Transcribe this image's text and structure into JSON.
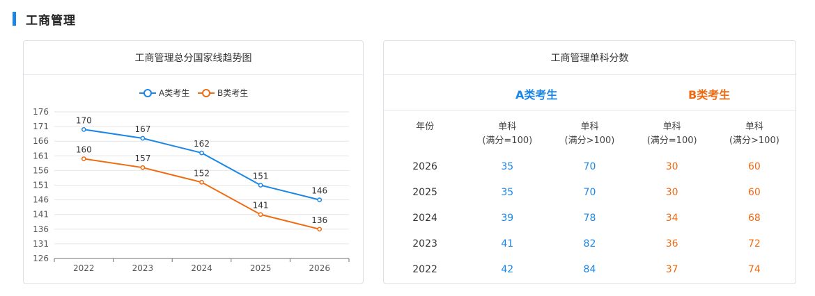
{
  "section": {
    "title": "工商管理"
  },
  "line_card": {
    "title": "工商管理总分国家线趋势图"
  },
  "table_card": {
    "title": "单科分数",
    "title_full": "工商管理单科分数",
    "group_a": "A类考生",
    "group_b": "B类考生",
    "headers": [
      {
        "line1": "年份",
        "line2": ""
      },
      {
        "line1": "单科",
        "line2": "(满分=100)"
      },
      {
        "line1": "单科",
        "line2": "(满分>100)"
      },
      {
        "line1": "单科",
        "line2": "(满分=100)"
      },
      {
        "line1": "单科",
        "line2": "(满分>100)"
      }
    ],
    "rows": [
      {
        "year": "2026",
        "a1": "35",
        "a2": "70",
        "b1": "30",
        "b2": "60"
      },
      {
        "year": "2025",
        "a1": "35",
        "a2": "70",
        "b1": "30",
        "b2": "60"
      },
      {
        "year": "2024",
        "a1": "39",
        "a2": "78",
        "b1": "34",
        "b2": "68"
      },
      {
        "year": "2023",
        "a1": "41",
        "a2": "82",
        "b1": "36",
        "b2": "72"
      },
      {
        "year": "2022",
        "a1": "42",
        "a2": "84",
        "b1": "37",
        "b2": "74"
      }
    ],
    "colors": {
      "a": "#1a86e6",
      "b": "#f06a10"
    }
  },
  "chart_data": {
    "type": "line",
    "title": "工商管理总分国家线趋势图",
    "categories": [
      "2022",
      "2023",
      "2024",
      "2025",
      "2026"
    ],
    "yticks": [
      126,
      131,
      136,
      141,
      146,
      151,
      156,
      161,
      166,
      171,
      176
    ],
    "ylim": [
      126,
      176
    ],
    "grid": true,
    "legend_position": "top-center",
    "series": [
      {
        "name": "A类考生",
        "color": "#1a86e6",
        "values": [
          170,
          167,
          162,
          151,
          146
        ]
      },
      {
        "name": "B类考生",
        "color": "#f06a10",
        "values": [
          160,
          157,
          152,
          141,
          136
        ]
      }
    ]
  }
}
